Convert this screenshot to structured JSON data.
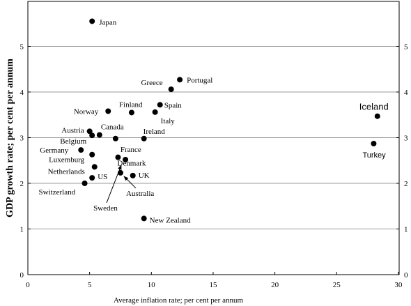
{
  "chart_data": {
    "type": "scatter",
    "xlabel": "Average inflation rate; per cent per annum",
    "ylabel": "GDP growth rate; per cent per annum",
    "xlim": [
      0,
      30
    ],
    "ylim": [
      0,
      6
    ],
    "xticks": [
      "0",
      "5",
      "10",
      "15",
      "20",
      "25",
      "30"
    ],
    "yticks": [
      "0",
      "1",
      "2",
      "3",
      "4",
      "5"
    ],
    "grid": "horizontal",
    "points": [
      {
        "label": "Japan",
        "x": 5.2,
        "y": 5.55
      },
      {
        "label": "Portugal",
        "x": 12.3,
        "y": 4.27
      },
      {
        "label": "Greece",
        "x": 11.6,
        "y": 4.06
      },
      {
        "label": "Spain",
        "x": 10.7,
        "y": 3.72
      },
      {
        "label": "Finland",
        "x": 8.4,
        "y": 3.55
      },
      {
        "label": "Norway",
        "x": 6.5,
        "y": 3.58
      },
      {
        "label": "Italy",
        "x": 10.3,
        "y": 3.56
      },
      {
        "label": "Iceland",
        "x": 28.3,
        "y": 3.47
      },
      {
        "label": "Austria",
        "x": 5.0,
        "y": 3.14
      },
      {
        "label": "Canada",
        "x": 5.8,
        "y": 3.06
      },
      {
        "label": "Ireland",
        "x": 9.4,
        "y": 2.98
      },
      {
        "label": "Belgium",
        "x": 5.2,
        "y": 3.05
      },
      {
        "label": "Turkey",
        "x": 28.0,
        "y": 2.87
      },
      {
        "label": "France",
        "x": 7.1,
        "y": 2.98
      },
      {
        "label": "Germany",
        "x": 4.3,
        "y": 2.73
      },
      {
        "label": "Luxemburg",
        "x": 5.2,
        "y": 2.63
      },
      {
        "label": "Denmark",
        "x": 7.3,
        "y": 2.57
      },
      {
        "label": "Netherlands",
        "x": 5.4,
        "y": 2.36
      },
      {
        "label": "Sweden",
        "x": 7.9,
        "y": 2.52
      },
      {
        "label": "Australia",
        "x": 7.5,
        "y": 2.23
      },
      {
        "label": "UK",
        "x": 8.5,
        "y": 2.17
      },
      {
        "label": "US",
        "x": 5.2,
        "y": 2.12
      },
      {
        "label": "Switzerland",
        "x": 4.6,
        "y": 2.0
      },
      {
        "label": "New Zealand",
        "x": 9.4,
        "y": 1.23
      }
    ]
  }
}
